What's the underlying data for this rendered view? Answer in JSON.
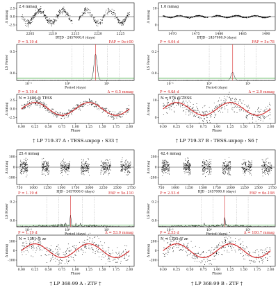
{
  "chart_data": [
    {
      "id": "A",
      "caption": "† LP 719-37 A : TESS-unpop : S33 †",
      "lightcurve": {
        "type": "scatter",
        "amp_label": "2.4 mmag",
        "xlabel": "BTJD - 2457000.0 (days)",
        "ylabel": "Δ mmag",
        "xticks": [
          "2205",
          "2210",
          "2215",
          "2220",
          "2225"
        ],
        "yticks": [
          "-2.5",
          "0.0",
          "2.5"
        ],
        "xlim": [
          2202,
          2228
        ],
        "ylim": [
          -4,
          4
        ],
        "gap": [
          2214.3,
          2215.7
        ],
        "signal": {
          "period": 5.19,
          "amplitude": 1.8
        }
      },
      "periodogram": {
        "type": "line",
        "period_label": "P = 5.19 d",
        "fap_label": "FAP = 0e+00",
        "xlabel": "Period (days)",
        "ylabel": "LS Power",
        "xticks": [
          "10⁻¹",
          "10⁰",
          "10¹"
        ],
        "yticks": [
          "0.0",
          "0.5"
        ],
        "peak_period": 5.19,
        "peak_power": 0.72
      },
      "phased": {
        "type": "scatter",
        "period_label": "P = 5.19 d",
        "amp_label": "Δ = 6.5 mmag",
        "n_label": "N = 3480 @ TESS",
        "xlabel": "Phase",
        "ylabel": "Δ mmag",
        "xticks": [
          "0.00",
          "0.25",
          "0.50",
          "0.75",
          "1.00",
          "1.25",
          "1.50",
          "1.75",
          "2.00"
        ],
        "yticks": [
          "-2.5",
          "0.0",
          "2.5"
        ],
        "amplitude": 6.5
      }
    },
    {
      "id": "B",
      "caption": "† LP 719-37 B : TESS-unpop : S6 †",
      "lightcurve": {
        "type": "scatter",
        "amp_label": "1.0 mmag",
        "xlabel": "BTJD - 2457000.0 (days)",
        "ylabel": "Δ mmag",
        "xticks": [
          "1470",
          "1475",
          "1480",
          "1485",
          "1490"
        ],
        "yticks": [
          "0",
          "10"
        ],
        "xlim": [
          1467,
          1492
        ],
        "ylim": [
          -14,
          14
        ],
        "gap": [
          1477.6,
          1478.4
        ],
        "signal": {
          "period": 4.04,
          "amplitude": 1.0
        }
      },
      "periodogram": {
        "type": "line",
        "period_label": "P = 4.04 d",
        "fap_label": "FAP = 5e-78",
        "xlabel": "Period (days)",
        "ylabel": "LS Power",
        "xticks": [
          "10⁻¹",
          "10⁰",
          "10¹"
        ],
        "yticks": [
          "0.0",
          "0.2"
        ],
        "peak_period": 4.04,
        "peak_power": 0.22
      },
      "phased": {
        "type": "scatter",
        "period_label": "P = 4.04 d",
        "amp_label": "Δ = 2.0 mmag",
        "n_label": "N = 976 @ TESS",
        "xlabel": "Phase",
        "ylabel": "Δ mmag",
        "xticks": [
          "0.00",
          "0.25",
          "0.50",
          "0.75",
          "1.00",
          "1.25",
          "1.50",
          "1.75",
          "2.00"
        ],
        "yticks": [
          "0",
          "10"
        ],
        "amplitude": 2.0
      }
    },
    {
      "id": "C",
      "caption": "† LP 368-99 A : ZTF †",
      "lightcurve": {
        "type": "scatter",
        "amp_label": "25.4 mmag",
        "xlabel": "HJD - 2457000.0 (days)",
        "ylabel": "Δ mmag",
        "xticks": [
          "750",
          "1000",
          "1250",
          "1500",
          "1750",
          "2000",
          "2250",
          "2500",
          "2750"
        ],
        "yticks": [
          "-100",
          "0",
          "100"
        ],
        "xlim": [
          700,
          2800
        ],
        "ylim": [
          -150,
          150
        ],
        "seasons": [
          [
            760,
            900
          ],
          [
            1150,
            1280
          ],
          [
            1480,
            1650
          ],
          [
            1850,
            2000
          ],
          [
            2200,
            2380
          ],
          [
            2560,
            2740
          ]
        ]
      },
      "periodogram": {
        "type": "line",
        "period_label": "P = 1.19 d",
        "fap_label": "FAP = 5e-110",
        "xlabel": "Period (days)",
        "ylabel": "LS Power",
        "xticks": [
          "10⁻¹",
          "10⁰",
          "10¹"
        ],
        "yticks": [
          "0.0",
          "0.2"
        ],
        "peak_period": 1.19,
        "peak_power": 0.3
      },
      "phased": {
        "type": "scatter",
        "period_label": "P = 1.19 d",
        "amp_label": "Δ = 53.0 mmag",
        "n_label": "N = 1301 @ zr",
        "xlabel": "Phase",
        "ylabel": "Δ mmag",
        "xticks": [
          "0.00",
          "0.25",
          "0.50",
          "0.75",
          "1.00",
          "1.25",
          "1.50",
          "1.75",
          "2.00"
        ],
        "yticks": [
          "-100",
          "0",
          "100"
        ],
        "amplitude": 53.0
      }
    },
    {
      "id": "D",
      "caption": "† LP 368-99 B : ZTF †",
      "lightcurve": {
        "type": "scatter",
        "amp_label": "42.4 mmag",
        "xlabel": "HJD - 2457000.0 (days)",
        "ylabel": "Δ mmag",
        "xticks": [
          "750",
          "1000",
          "1250",
          "1500",
          "1750",
          "2000",
          "2250",
          "2500",
          "2750"
        ],
        "yticks": [
          "-200",
          "0",
          "200"
        ],
        "xlim": [
          700,
          2800
        ],
        "ylim": [
          -260,
          260
        ],
        "seasons": [
          [
            760,
            900
          ],
          [
            1150,
            1280
          ],
          [
            1480,
            1650
          ],
          [
            1850,
            2000
          ],
          [
            2200,
            2380
          ],
          [
            2560,
            2740
          ]
        ]
      },
      "periodogram": {
        "type": "line",
        "period_label": "P = 2.53 d",
        "fap_label": "FAP = 6e-198",
        "xlabel": "Period (days)",
        "ylabel": "LS Power",
        "xticks": [
          "10⁻¹",
          "10⁰",
          "10¹"
        ],
        "yticks": [
          "0.0",
          "0.2"
        ],
        "peak_period": 2.53,
        "peak_power": 0.32
      },
      "phased": {
        "type": "scatter",
        "period_label": "P = 2.53 d",
        "amp_label": "Δ = 100.7 mmag",
        "n_label": "N = 1305 @ zr",
        "xlabel": "Phase",
        "ylabel": "Δ mmag",
        "xticks": [
          "0.00",
          "0.25",
          "0.50",
          "0.75",
          "1.00",
          "1.25",
          "1.50",
          "1.75",
          "2.00"
        ],
        "yticks": [
          "-200",
          "0",
          "200"
        ],
        "amplitude": 100.7
      }
    }
  ]
}
